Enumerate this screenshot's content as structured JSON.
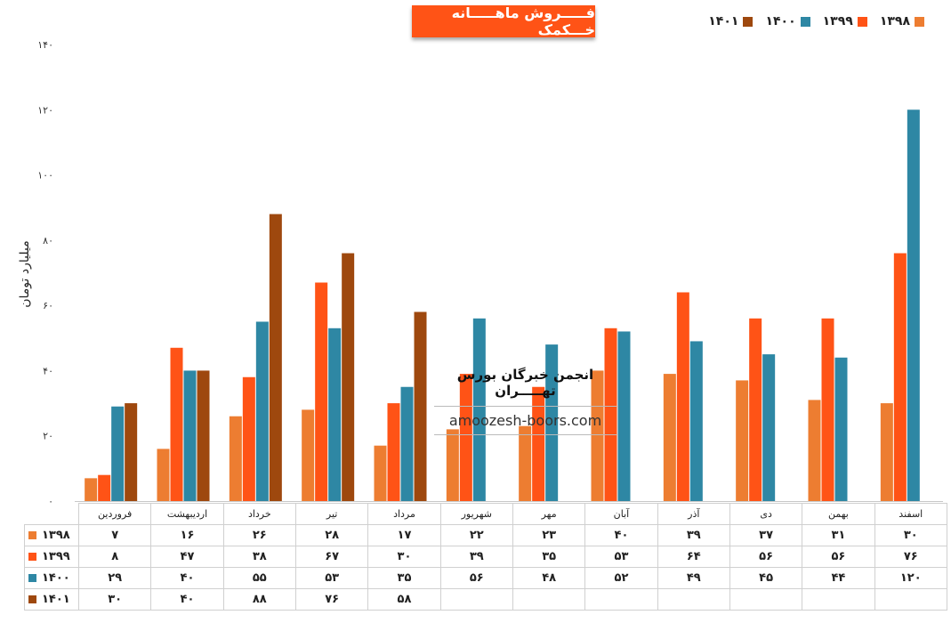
{
  "chart_data": {
    "type": "bar",
    "title": "فـــــروش ماهـــــانه خـــکمک",
    "ylabel": "میلیارد تومان",
    "xlabel": "",
    "ylim": [
      0,
      140
    ],
    "yticks": [
      "۰",
      "۲۰",
      "۴۰",
      "۶۰",
      "۸۰",
      "۱۰۰",
      "۱۲۰",
      "۱۴۰"
    ],
    "categories": [
      "فروردین",
      "اردیبهشت",
      "خرداد",
      "تیر",
      "مرداد",
      "شهریور",
      "مهر",
      "آبان",
      "آذر",
      "دی",
      "بهمن",
      "اسفند"
    ],
    "series": [
      {
        "name": "۱۳۹۸",
        "color": "#ed7d31",
        "values": [
          7,
          16,
          26,
          28,
          17,
          22,
          23,
          40,
          39,
          37,
          31,
          30
        ],
        "labels": [
          "۷",
          "۱۶",
          "۲۶",
          "۲۸",
          "۱۷",
          "۲۲",
          "۲۳",
          "۴۰",
          "۳۹",
          "۳۷",
          "۳۱",
          "۳۰"
        ]
      },
      {
        "name": "۱۳۹۹",
        "color": "#ff5316",
        "values": [
          8,
          47,
          38,
          67,
          30,
          39,
          35,
          53,
          64,
          56,
          56,
          76
        ],
        "labels": [
          "۸",
          "۴۷",
          "۳۸",
          "۶۷",
          "۳۰",
          "۳۹",
          "۳۵",
          "۵۳",
          "۶۴",
          "۵۶",
          "۵۶",
          "۷۶"
        ]
      },
      {
        "name": "۱۴۰۰",
        "color": "#2e87a4",
        "values": [
          29,
          40,
          55,
          53,
          35,
          56,
          48,
          52,
          49,
          45,
          44,
          120
        ],
        "labels": [
          "۲۹",
          "۴۰",
          "۵۵",
          "۵۳",
          "۳۵",
          "۵۶",
          "۴۸",
          "۵۲",
          "۴۹",
          "۴۵",
          "۴۴",
          "۱۲۰"
        ]
      },
      {
        "name": "۱۴۰۱",
        "color": "#9e480e",
        "values": [
          30,
          40,
          88,
          76,
          58,
          null,
          null,
          null,
          null,
          null,
          null,
          null
        ],
        "labels": [
          "۳۰",
          "۴۰",
          "۸۸",
          "۷۶",
          "۵۸",
          "",
          "",
          "",
          "",
          "",
          "",
          ""
        ]
      }
    ],
    "legend": "top-right",
    "grid": false,
    "data_table": true
  },
  "watermark": {
    "line1": "انجمن خبرگان بورس تهـــــران",
    "line2": "amoozesh-boors.com"
  }
}
